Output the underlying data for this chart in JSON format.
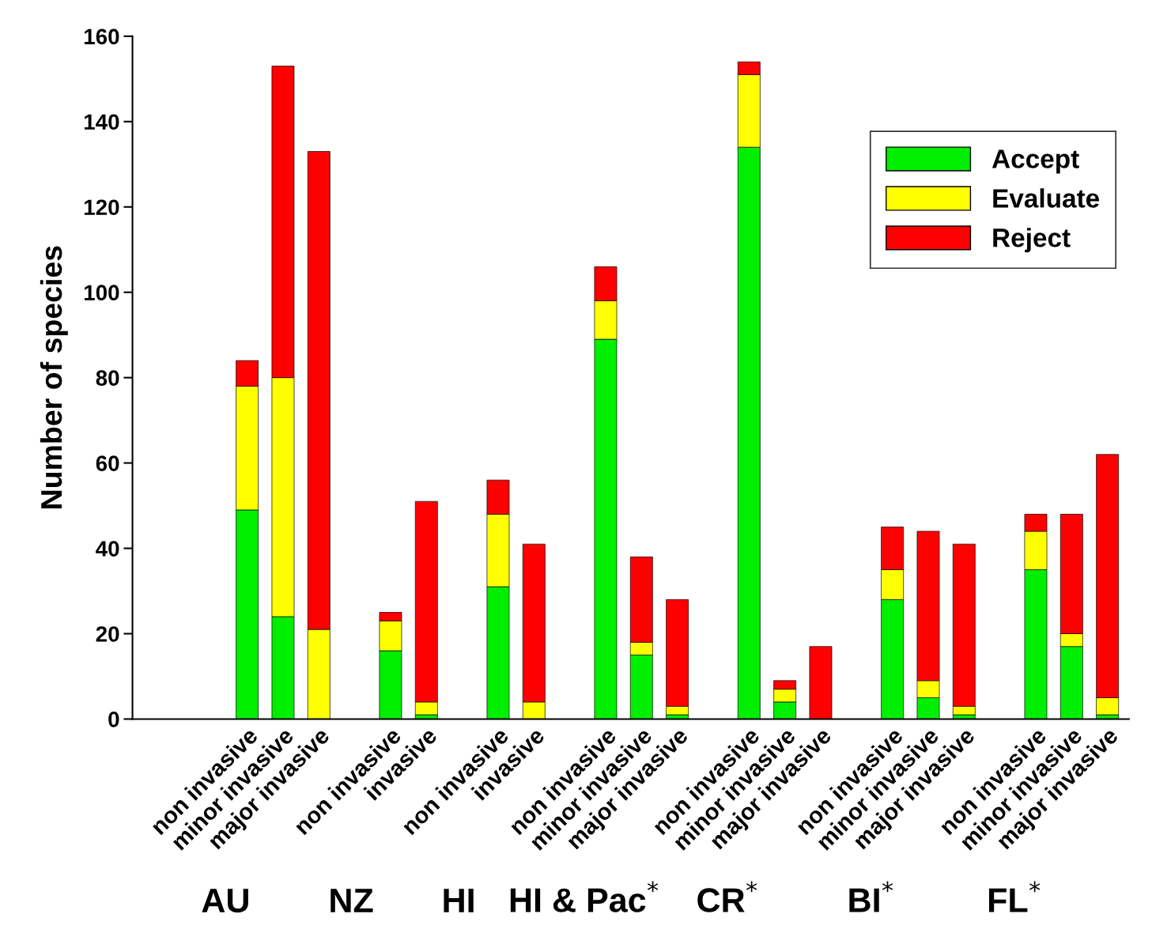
{
  "chart_data": {
    "type": "bar",
    "stacked": true,
    "ylabel": "Number of species",
    "categories": [
      "non invasive",
      "minor invasive",
      "major invasive",
      null,
      "non invasive",
      "invasive",
      null,
      "non invasive",
      "invasive",
      null,
      "non invasive",
      "minor invasive",
      "major invasive",
      null,
      "non invasive",
      "minor invasive",
      "major invasive",
      null,
      "non invasive",
      "minor invasive",
      "major invasive",
      null,
      "non invasive",
      "minor invasive",
      "major invasive"
    ],
    "series": [
      {
        "name": "Accept",
        "color": "#00ee00",
        "values": [
          49,
          24,
          0,
          null,
          16,
          1,
          null,
          31,
          0,
          null,
          89,
          15,
          1,
          null,
          134,
          4,
          0,
          null,
          28,
          5,
          1,
          null,
          35,
          17,
          1
        ]
      },
      {
        "name": "Evaluate",
        "color": "#ffff00",
        "values": [
          29,
          56,
          21,
          null,
          7,
          3,
          null,
          17,
          4,
          null,
          9,
          3,
          2,
          null,
          17,
          3,
          0,
          null,
          7,
          4,
          2,
          null,
          9,
          3,
          4
        ]
      },
      {
        "name": "Reject",
        "color": "#ff0000",
        "values": [
          6,
          73,
          112,
          null,
          2,
          47,
          null,
          8,
          37,
          null,
          8,
          20,
          25,
          null,
          3,
          2,
          17,
          null,
          10,
          35,
          38,
          null,
          4,
          28,
          57
        ]
      }
    ],
    "ylim": [
      0,
      160
    ],
    "yticks": [
      0,
      20,
      40,
      60,
      80,
      100,
      120,
      140,
      160
    ],
    "annotations": [
      "AU",
      "NZ",
      "HI",
      "HI & Pac$^{*}$",
      "CR$^{*}$",
      "BI$^{*}$",
      "FL$^{*}$"
    ],
    "legend": "top right",
    "grid": false
  }
}
